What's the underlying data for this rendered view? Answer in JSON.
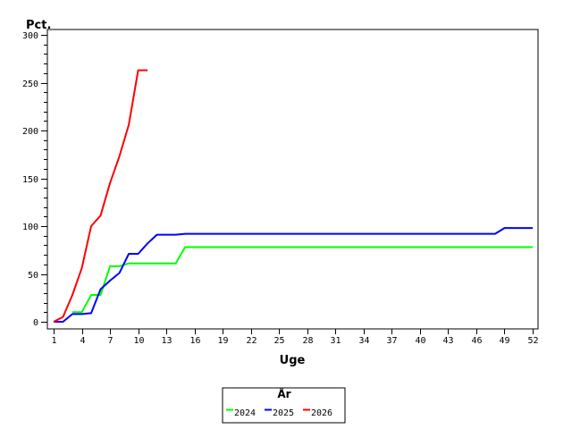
{
  "chart_data": {
    "type": "line",
    "title": "",
    "xlabel": "Uge",
    "ylabel": "Pct.",
    "xlim": [
      1,
      52
    ],
    "ylim": [
      0,
      300
    ],
    "x_ticks": [
      1,
      4,
      7,
      10,
      13,
      16,
      19,
      22,
      25,
      28,
      31,
      34,
      37,
      40,
      43,
      46,
      49,
      52
    ],
    "y_ticks": [
      0,
      50,
      100,
      150,
      200,
      250,
      300
    ],
    "y_minor_step": 10,
    "grid": false,
    "legend": {
      "title": "År",
      "position": "bottom"
    },
    "series": [
      {
        "name": "2024",
        "color": "#00ff00",
        "x": [
          3,
          4,
          5,
          6,
          7,
          8,
          9,
          10,
          11,
          12,
          13,
          14,
          15,
          16,
          17,
          18,
          19,
          20,
          21,
          22,
          23,
          24,
          25,
          26,
          27,
          28,
          29,
          30,
          31,
          32,
          33,
          34,
          35,
          36,
          37,
          38,
          39,
          40,
          41,
          42,
          43,
          44,
          45,
          46,
          47,
          48,
          49,
          50,
          51,
          52
        ],
        "values": [
          10,
          10,
          28,
          28,
          58,
          58,
          61,
          61,
          61,
          61,
          61,
          61,
          78,
          78,
          78,
          78,
          78,
          78,
          78,
          78,
          78,
          78,
          78,
          78,
          78,
          78,
          78,
          78,
          78,
          78,
          78,
          78,
          78,
          78,
          78,
          78,
          78,
          78,
          78,
          78,
          78,
          78,
          78,
          78,
          78,
          78,
          78,
          78,
          78,
          78
        ]
      },
      {
        "name": "2025",
        "color": "#0000ff",
        "x": [
          1,
          2,
          3,
          4,
          5,
          6,
          7,
          8,
          9,
          10,
          11,
          12,
          13,
          14,
          15,
          16,
          17,
          18,
          19,
          20,
          21,
          22,
          23,
          24,
          25,
          26,
          27,
          28,
          29,
          30,
          31,
          32,
          33,
          34,
          35,
          36,
          37,
          38,
          39,
          40,
          41,
          42,
          43,
          44,
          45,
          46,
          47,
          48,
          49,
          50,
          51,
          52
        ],
        "values": [
          0,
          0,
          8,
          8,
          9,
          34,
          43,
          51,
          71,
          71,
          82,
          91,
          91,
          91,
          92,
          92,
          92,
          92,
          92,
          92,
          92,
          92,
          92,
          92,
          92,
          92,
          92,
          92,
          92,
          92,
          92,
          92,
          92,
          92,
          92,
          92,
          92,
          92,
          92,
          92,
          92,
          92,
          92,
          92,
          92,
          92,
          92,
          92,
          98,
          98,
          98,
          98
        ]
      },
      {
        "name": "2026",
        "color": "#ff0000",
        "x": [
          1,
          2,
          3,
          4,
          5,
          6,
          7,
          8,
          9,
          10,
          11
        ],
        "values": [
          0,
          5,
          28,
          56,
          100,
          111,
          145,
          173,
          206,
          263,
          263
        ]
      }
    ]
  }
}
